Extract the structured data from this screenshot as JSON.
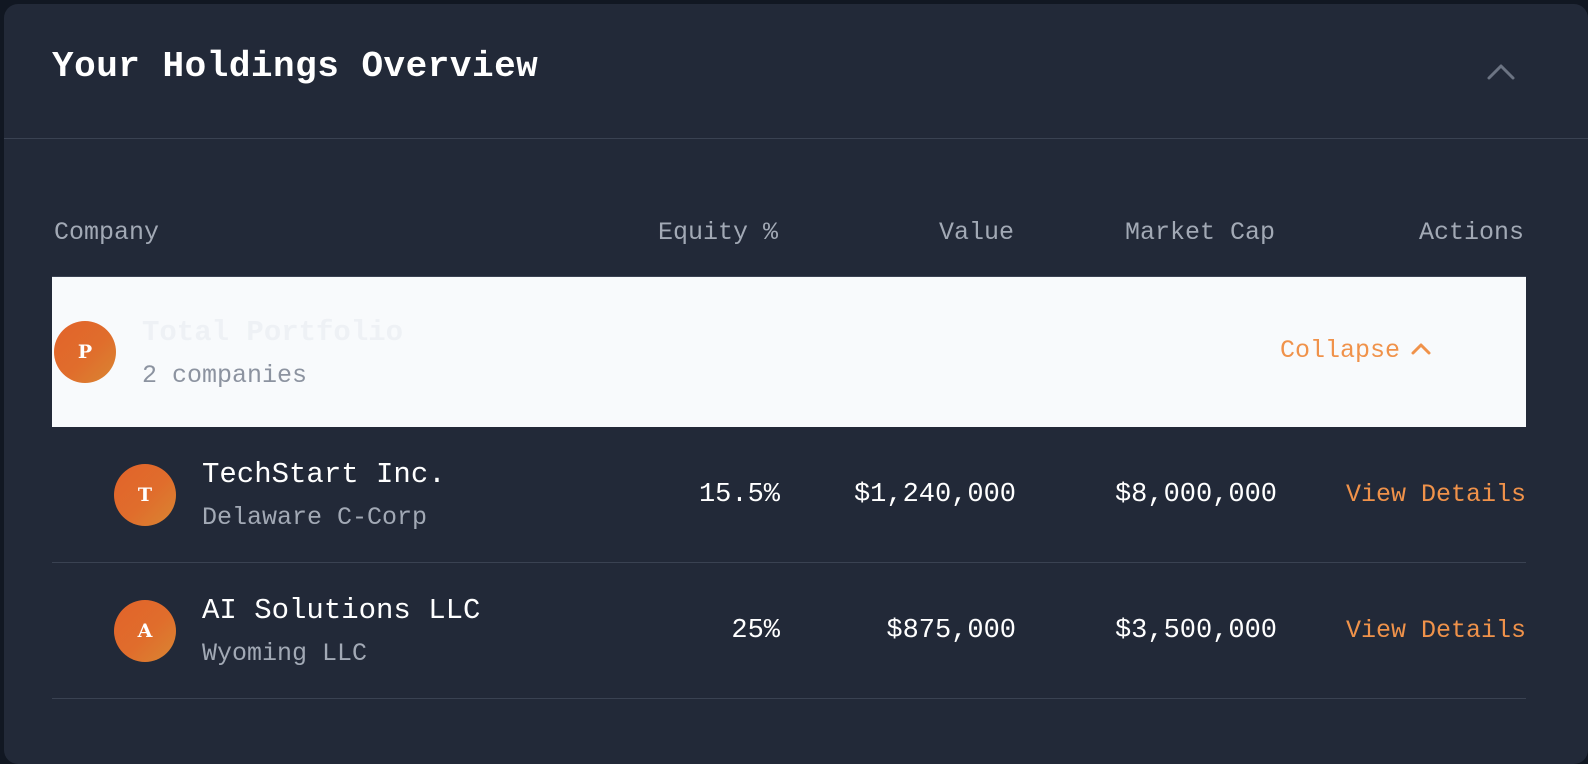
{
  "panel": {
    "title": "Your Holdings Overview",
    "toggle_icon": "chevron-up-icon"
  },
  "table": {
    "columns": [
      "Company",
      "Equity %",
      "Value",
      "Market Cap",
      "Actions"
    ],
    "total": {
      "avatar_letter": "P",
      "name": "Total Portfolio",
      "subtitle": "2 companies",
      "action_label": "Collapse",
      "action_icon": "chevron-up-icon"
    },
    "rows": [
      {
        "avatar_letter": "T",
        "name": "TechStart Inc.",
        "entity_type": "Delaware C-Corp",
        "equity": "15.5%",
        "value": "$1,240,000",
        "market_cap": "$8,000,000",
        "action_label": "View Details"
      },
      {
        "avatar_letter": "A",
        "name": "AI Solutions LLC",
        "entity_type": "Wyoming LLC",
        "equity": "25%",
        "value": "$875,000",
        "market_cap": "$3,500,000",
        "action_label": "View Details"
      }
    ]
  },
  "colors": {
    "background": "#222938",
    "accent": "#f0924a",
    "avatar_orange": "#e2632a",
    "highlight_row": "#f8fafc",
    "divider": "#3a4252",
    "muted_text": "#a2a9b5"
  }
}
